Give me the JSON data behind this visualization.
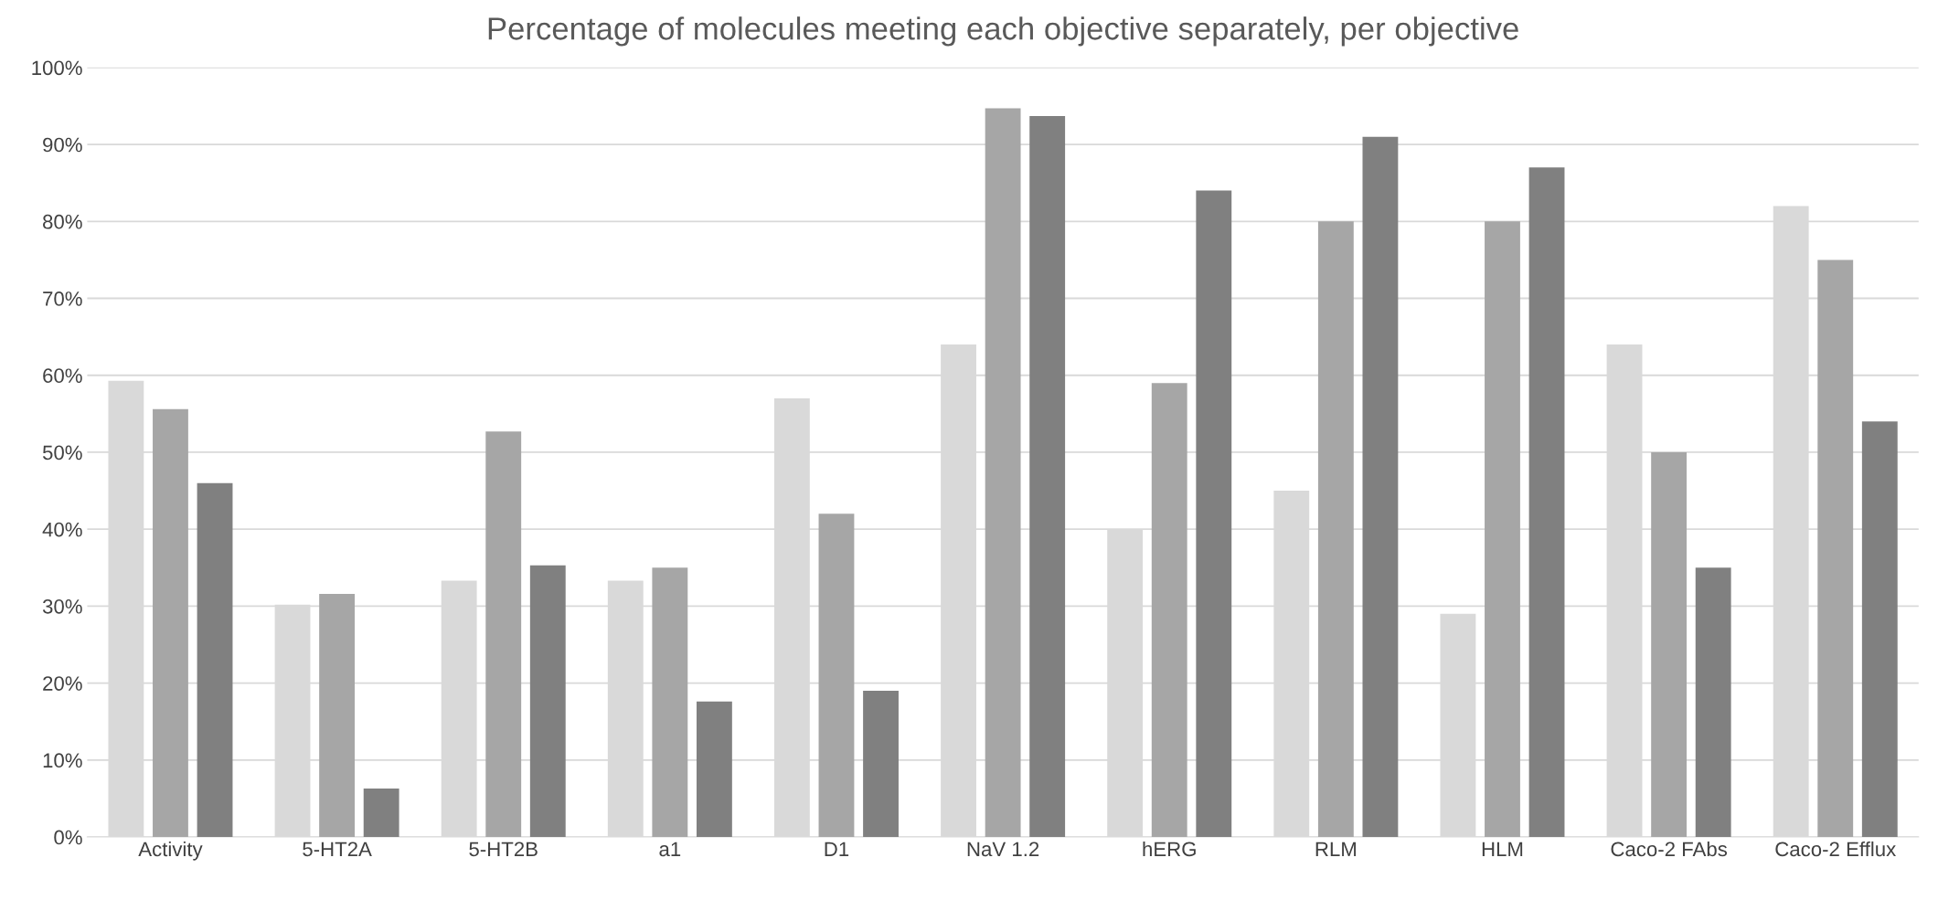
{
  "chart_data": {
    "type": "bar",
    "title": "Percentage of molecules meeting each objective separately, per objective",
    "categories": [
      "Activity",
      "5-HT2A",
      "5-HT2B",
      "a1",
      "D1",
      "NaV 1.2",
      "hERG",
      "RLM",
      "HLM",
      "Caco-2 FAbs",
      "Caco-2 Efflux"
    ],
    "series": [
      {
        "color": "#d9d9d9",
        "values": [
          59.3,
          30.2,
          33.3,
          33.3,
          57,
          64,
          40,
          45,
          29,
          64,
          82
        ]
      },
      {
        "color": "#a6a6a6",
        "values": [
          55.6,
          31.6,
          52.7,
          35,
          42,
          94.7,
          59,
          80,
          80,
          50,
          75
        ]
      },
      {
        "color": "#808080",
        "values": [
          46,
          6.3,
          35.3,
          17.6,
          19,
          93.7,
          84,
          91,
          87,
          35,
          54
        ]
      }
    ],
    "ylim": [
      0,
      100
    ],
    "yticks": [
      {
        "value": 0,
        "label": "0%"
      },
      {
        "value": 10,
        "label": "10%"
      },
      {
        "value": 20,
        "label": "20%"
      },
      {
        "value": 30,
        "label": "30%"
      },
      {
        "value": 40,
        "label": "40%"
      },
      {
        "value": 50,
        "label": "50%"
      },
      {
        "value": 60,
        "label": "60%"
      },
      {
        "value": 70,
        "label": "70%"
      },
      {
        "value": 80,
        "label": "80%"
      },
      {
        "value": 90,
        "label": "90%"
      },
      {
        "value": 100,
        "label": "100%"
      }
    ],
    "grid": "y",
    "legend": false
  }
}
